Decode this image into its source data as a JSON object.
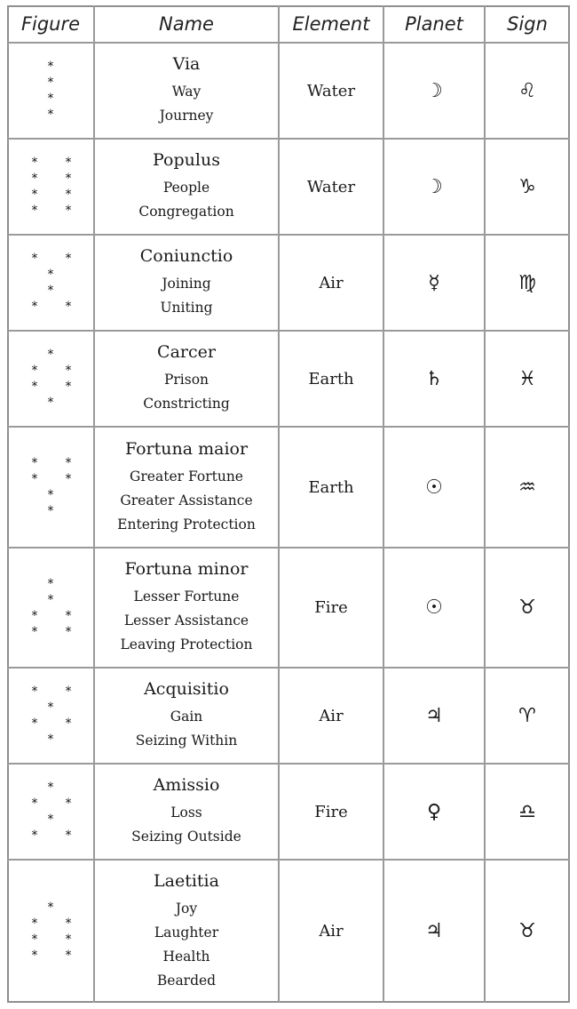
{
  "headers": {
    "figure": "Figure",
    "name": "Name",
    "element": "Element",
    "planet": "Planet",
    "sign": "Sign"
  },
  "rows": [
    {
      "name": "Via",
      "meanings": [
        "Way",
        "Journey"
      ],
      "element": "Water",
      "planet_icon": "moon-icon",
      "planet": "☽",
      "sign_icon": "leo-icon",
      "sign": "♌",
      "figure_rows": [
        1,
        1,
        1,
        1
      ]
    },
    {
      "name": "Populus",
      "meanings": [
        "People",
        "Congregation"
      ],
      "element": "Water",
      "planet_icon": "moon-icon",
      "planet": "☽",
      "sign_icon": "capricorn-icon",
      "sign": "♑",
      "figure_rows": [
        2,
        2,
        2,
        2
      ]
    },
    {
      "name": "Coniunctio",
      "meanings": [
        "Joining",
        "Uniting"
      ],
      "element": "Air",
      "planet_icon": "mercury-icon",
      "planet": "☿",
      "sign_icon": "virgo-icon",
      "sign": "♍",
      "figure_rows": [
        2,
        1,
        1,
        2
      ]
    },
    {
      "name": "Carcer",
      "meanings": [
        "Prison",
        "Constricting"
      ],
      "element": "Earth",
      "planet_icon": "saturn-icon",
      "planet": "♄",
      "sign_icon": "pisces-icon",
      "sign": "♓",
      "figure_rows": [
        1,
        2,
        2,
        1
      ]
    },
    {
      "name": "Fortuna maior",
      "meanings": [
        "Greater Fortune",
        "Greater Assistance",
        "Entering Protection"
      ],
      "element": "Earth",
      "planet_icon": "sun-icon",
      "planet": "☉",
      "sign_icon": "aquarius-icon",
      "sign": "♒",
      "figure_rows": [
        2,
        2,
        1,
        1
      ]
    },
    {
      "name": "Fortuna minor",
      "meanings": [
        "Lesser Fortune",
        "Lesser Assistance",
        "Leaving Protection"
      ],
      "element": "Fire",
      "planet_icon": "sun-icon",
      "planet": "☉",
      "sign_icon": "taurus-icon",
      "sign": "♉",
      "figure_rows": [
        1,
        1,
        2,
        2
      ]
    },
    {
      "name": "Acquisitio",
      "meanings": [
        "Gain",
        "Seizing Within"
      ],
      "element": "Air",
      "planet_icon": "jupiter-icon",
      "planet": "♃",
      "sign_icon": "aries-icon",
      "sign": "♈",
      "figure_rows": [
        2,
        1,
        2,
        1
      ]
    },
    {
      "name": "Amissio",
      "meanings": [
        "Loss",
        "Seizing Outside"
      ],
      "element": "Fire",
      "planet_icon": "venus-icon",
      "planet": "♀",
      "sign_icon": "libra-icon",
      "sign": "♎",
      "figure_rows": [
        1,
        2,
        1,
        2
      ]
    },
    {
      "name": "Laetitia",
      "meanings": [
        "Joy",
        "Laughter",
        "Health",
        "Bearded"
      ],
      "element": "Air",
      "planet_icon": "jupiter-icon",
      "planet": "♃",
      "sign_icon": "taurus-icon",
      "sign": "♉",
      "figure_rows": [
        1,
        2,
        2,
        2
      ]
    }
  ]
}
